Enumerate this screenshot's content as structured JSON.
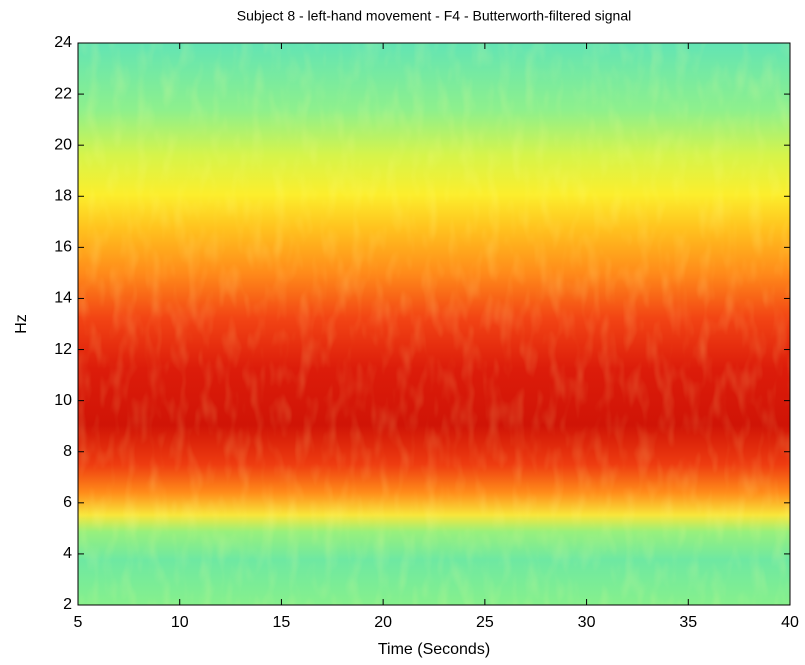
{
  "chart_data": {
    "type": "spectrogram",
    "title": "Subject 8 - left-hand movement - F4 - Butterworth-filtered signal",
    "xlabel": "Time (Seconds)",
    "ylabel": "Hz",
    "xlim": [
      5,
      40
    ],
    "xticks": [
      5,
      10,
      15,
      20,
      25,
      30,
      35,
      40
    ],
    "ylim": [
      2,
      24
    ],
    "yticks": [
      2,
      4,
      6,
      8,
      10,
      12,
      14,
      16,
      18,
      20,
      22,
      24
    ]
  }
}
